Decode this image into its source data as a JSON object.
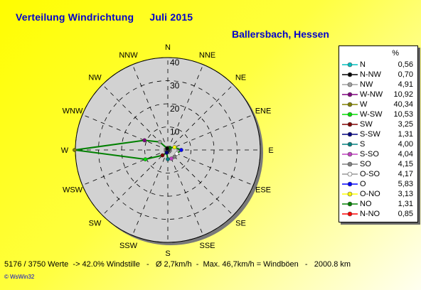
{
  "header": {
    "title": "Verteilung Windrichtung",
    "month": "Juli 2015",
    "location": "Ballersbach, Hessen"
  },
  "footer": {
    "stats": "5176 / 3750 Werte  -> 42.0% Windstille   -   Ø 2,7km/h  -  Max. 46,7km/h = Windböen   -   2000.8 km",
    "credit": "© WsWin32"
  },
  "chart_data": {
    "type": "radar",
    "title": "Verteilung Windrichtung",
    "rmax": 40,
    "rings": [
      10,
      20,
      30,
      40
    ],
    "ring_labels": [
      "10",
      "20",
      "30",
      "40"
    ],
    "directions": [
      "N",
      "NNE",
      "NE",
      "ENE",
      "E",
      "ESE",
      "SE",
      "SSE",
      "S",
      "SSW",
      "SW",
      "WSW",
      "W",
      "WNW",
      "NW",
      "NNW"
    ],
    "series": [
      {
        "values": [
          0.56,
          0.85,
          1.31,
          3.13,
          5.83,
          4.17,
          4.15,
          4.04,
          4.0,
          1.31,
          3.25,
          10.53,
          40.34,
          10.92,
          4.91,
          0.7
        ],
        "color": "#008000"
      }
    ]
  },
  "legend": {
    "unit_label": "%",
    "items": [
      {
        "label": "N",
        "value": "0,56",
        "color": "#00c0c0"
      },
      {
        "label": "N-NW",
        "value": "0,70",
        "color": "#000000"
      },
      {
        "label": "NW",
        "value": "4,91",
        "color": "#a0a0a0"
      },
      {
        "label": "W-NW",
        "value": "10,92",
        "color": "#800080"
      },
      {
        "label": "W",
        "value": "40,34",
        "color": "#808000"
      },
      {
        "label": "W-SW",
        "value": "10,53",
        "color": "#00e000"
      },
      {
        "label": "SW",
        "value": "3,25",
        "color": "#800000"
      },
      {
        "label": "S-SW",
        "value": "1,31",
        "color": "#000080"
      },
      {
        "label": "S",
        "value": "4,00",
        "color": "#008080"
      },
      {
        "label": "S-SO",
        "value": "4,04",
        "color": "#c040c0"
      },
      {
        "label": "SO",
        "value": "4,15",
        "color": "#808080"
      },
      {
        "label": "O-SO",
        "value": "4,17",
        "color": "#ffffff"
      },
      {
        "label": "O",
        "value": "5,83",
        "color": "#0000ff"
      },
      {
        "label": "O-NO",
        "value": "3,13",
        "color": "#ffff00"
      },
      {
        "label": "NO",
        "value": "1,31",
        "color": "#008000"
      },
      {
        "label": "N-NO",
        "value": "0,85",
        "color": "#ff0000"
      }
    ]
  }
}
